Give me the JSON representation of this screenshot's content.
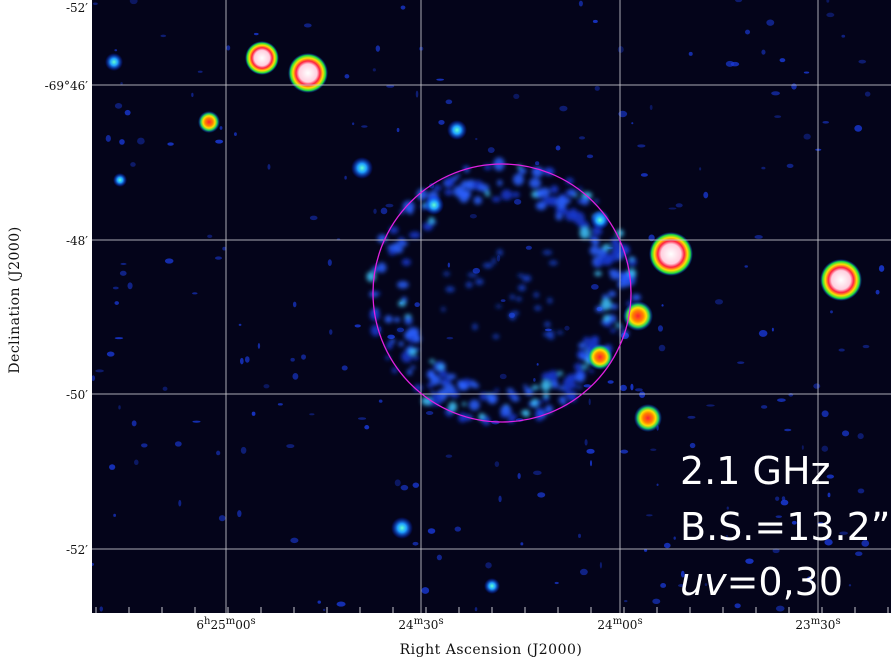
{
  "axes": {
    "x_title": "Right Ascension (J2000)",
    "y_title": "Declination (J2000)",
    "x_ticks": [
      {
        "h": "6",
        "hu": "h",
        "m": "25",
        "mu": "m",
        "s": "00",
        "su": "s"
      },
      {
        "h": "",
        "hu": "",
        "m": "24",
        "mu": "m",
        "s": "30",
        "su": "s"
      },
      {
        "h": "",
        "hu": "",
        "m": "24",
        "mu": "m",
        "s": "00",
        "su": "s"
      },
      {
        "h": "",
        "hu": "",
        "m": "23",
        "mu": "m",
        "s": "30",
        "su": "s"
      }
    ],
    "y_ticks": [
      "-52′",
      "-69°46′",
      "-48′",
      "-50′",
      "-52′"
    ]
  },
  "annotation": {
    "frequency": "2.1 GHz",
    "beam": "B.S.=13.2”",
    "uv_italic": "uv",
    "uv_rest": "=0,30"
  },
  "colors": {
    "background": "#04041a",
    "grid": "#c8c8d0",
    "circle": "#e020e0",
    "emission": "#2a5cff"
  }
}
